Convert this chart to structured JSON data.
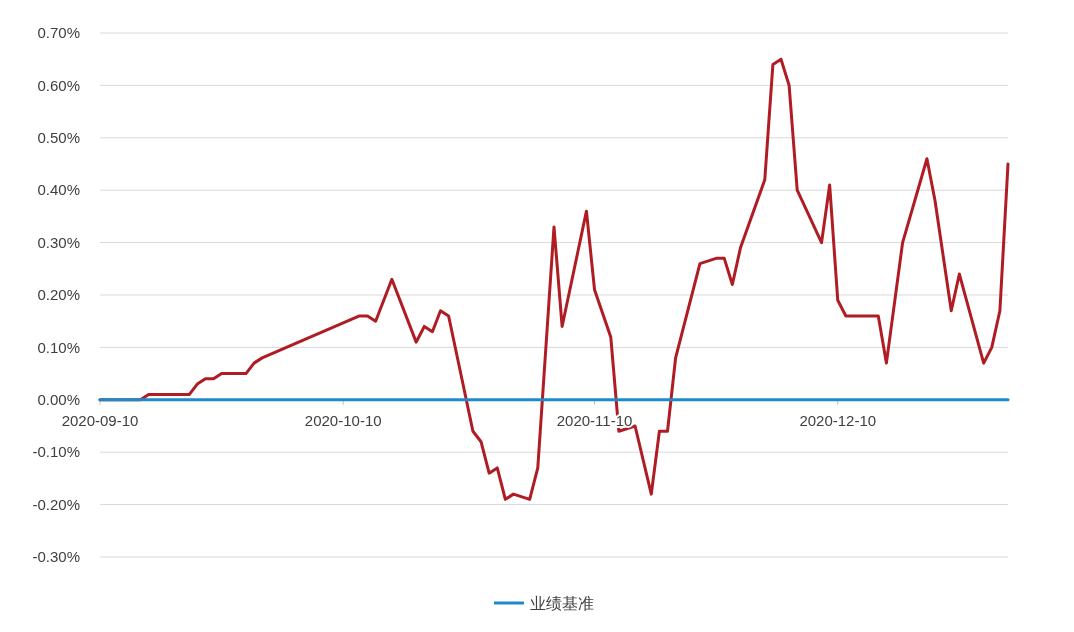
{
  "chart_data": {
    "type": "line",
    "xlim": [
      "2020-09-10",
      "2020-12-31"
    ],
    "xticks": [
      "2020-09-10",
      "2020-10-10",
      "2020-11-10",
      "2020-12-10"
    ],
    "ylim": [
      -0.3,
      0.7
    ],
    "yticks": [
      {
        "value": -0.3,
        "label": "-0.30%"
      },
      {
        "value": -0.2,
        "label": "-0.20%"
      },
      {
        "value": -0.1,
        "label": "-0.10%"
      },
      {
        "value": 0,
        "label": "0.00%"
      },
      {
        "value": 0.1,
        "label": "0.10%"
      },
      {
        "value": 0.2,
        "label": "0.20%"
      },
      {
        "value": 0.3,
        "label": "0.30%"
      },
      {
        "value": 0.4,
        "label": "0.40%"
      },
      {
        "value": 0.5,
        "label": "0.50%"
      },
      {
        "value": 0.6,
        "label": "0.60%"
      },
      {
        "value": 0.7,
        "label": "0.70%"
      }
    ],
    "grid": "y",
    "legend": "bottom",
    "marker": "none",
    "line_style": "solid",
    "series": [
      {
        "color": "#b01c24",
        "x": [
          "2020-09-10",
          "2020-09-15",
          "2020-09-16",
          "2020-09-21",
          "2020-09-22",
          "2020-09-23",
          "2020-09-24",
          "2020-09-25",
          "2020-09-28",
          "2020-09-29",
          "2020-09-30",
          "2020-10-12",
          "2020-10-13",
          "2020-10-14",
          "2020-10-16",
          "2020-10-19",
          "2020-10-20",
          "2020-10-21",
          "2020-10-22",
          "2020-10-23",
          "2020-10-26",
          "2020-10-27",
          "2020-10-28",
          "2020-10-29",
          "2020-10-30",
          "2020-10-31",
          "2020-11-02",
          "2020-11-03",
          "2020-11-05",
          "2020-11-06",
          "2020-11-09",
          "2020-11-10",
          "2020-11-12",
          "2020-11-13",
          "2020-11-15",
          "2020-11-17",
          "2020-11-18",
          "2020-11-19",
          "2020-11-20",
          "2020-11-23",
          "2020-11-25",
          "2020-11-26",
          "2020-11-27",
          "2020-11-28",
          "2020-12-01",
          "2020-12-02",
          "2020-12-03",
          "2020-12-04",
          "2020-12-05",
          "2020-12-08",
          "2020-12-09",
          "2020-12-10",
          "2020-12-11",
          "2020-12-15",
          "2020-12-16",
          "2020-12-18",
          "2020-12-21",
          "2020-12-22",
          "2020-12-24",
          "2020-12-25",
          "2020-12-28",
          "2020-12-29",
          "2020-12-30",
          "2020-12-31"
        ],
        "values": [
          0,
          0,
          0.01,
          0.01,
          0.03,
          0.04,
          0.04,
          0.05,
          0.05,
          0.07,
          0.08,
          0.16,
          0.16,
          0.15,
          0.23,
          0.11,
          0.14,
          0.13,
          0.17,
          0.16,
          -0.06,
          -0.08,
          -0.14,
          -0.13,
          -0.19,
          -0.18,
          -0.19,
          -0.13,
          0.33,
          0.14,
          0.36,
          0.21,
          0.12,
          -0.06,
          -0.05,
          -0.18,
          -0.06,
          -0.06,
          0.08,
          0.26,
          0.27,
          0.27,
          0.22,
          0.29,
          0.42,
          0.64,
          0.65,
          0.6,
          0.4,
          0.3,
          0.41,
          0.19,
          0.16,
          0.16,
          0.07,
          0.3,
          0.46,
          0.38,
          0.17,
          0.24,
          0.07,
          0.1,
          0.17,
          0.45
        ]
      },
      {
        "name": "业绩基准",
        "color": "#1f8ac9",
        "x": [
          "2020-09-10",
          "2020-12-31"
        ],
        "values": [
          0,
          0
        ]
      }
    ]
  }
}
